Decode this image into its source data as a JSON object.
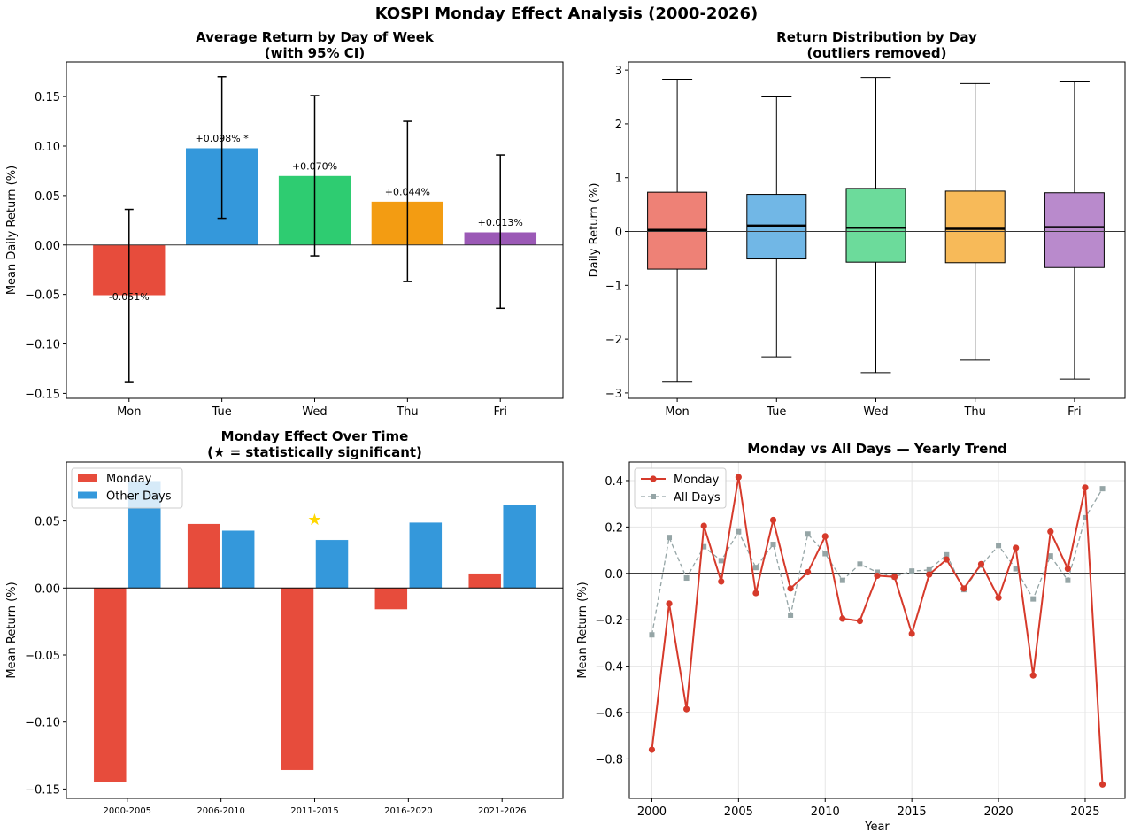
{
  "suptitle": "KOSPI Monday Effect Analysis (2000-2026)",
  "chart_data": [
    {
      "type": "bar",
      "title": "Average Return by Day of Week",
      "subtitle": "(with 95% CI)",
      "xlabel": "",
      "ylabel": "Mean Daily Return (%)",
      "categories": [
        "Mon",
        "Tue",
        "Wed",
        "Thu",
        "Fri"
      ],
      "values": [
        -0.051,
        0.098,
        0.07,
        0.044,
        0.013
      ],
      "ci_low": [
        -0.139,
        0.027,
        -0.011,
        -0.037,
        -0.064
      ],
      "ci_high": [
        0.036,
        0.17,
        0.151,
        0.125,
        0.091
      ],
      "data_labels": [
        "-0.051%",
        "+0.098% *",
        "+0.070%",
        "+0.044%",
        "+0.013%"
      ],
      "colors": [
        "#e74c3c",
        "#3498db",
        "#2ecc71",
        "#f39c12",
        "#9b59b6"
      ],
      "ylim": [
        -0.155,
        0.185
      ],
      "yticks": [
        -0.15,
        -0.1,
        -0.05,
        0.0,
        0.05,
        0.1,
        0.15
      ],
      "ytick_labels": [
        "−0.15",
        "−0.10",
        "−0.05",
        "0.00",
        "0.05",
        "0.10",
        "0.15"
      ],
      "grid": false,
      "zero_line": true
    },
    {
      "type": "box",
      "title": "Return Distribution by Day",
      "subtitle": "(outliers removed)",
      "xlabel": "",
      "ylabel": "Daily Return (%)",
      "categories": [
        "Mon",
        "Tue",
        "Wed",
        "Thu",
        "Fri"
      ],
      "whisker_low": [
        -2.8,
        -2.33,
        -2.62,
        -2.39,
        -2.74
      ],
      "q1": [
        -0.7,
        -0.51,
        -0.57,
        -0.58,
        -0.67
      ],
      "median": [
        0.03,
        0.11,
        0.07,
        0.05,
        0.08
      ],
      "q3": [
        0.73,
        0.69,
        0.8,
        0.75,
        0.72
      ],
      "whisker_high": [
        2.83,
        2.5,
        2.86,
        2.75,
        2.78
      ],
      "colors": [
        "#e74c3c",
        "#3498db",
        "#2ecc71",
        "#f39c12",
        "#9b59b6"
      ],
      "ylim": [
        -3.1,
        3.15
      ],
      "yticks": [
        -3,
        -2,
        -1,
        0,
        1,
        2,
        3
      ],
      "ytick_labels": [
        "−3",
        "−2",
        "−1",
        "0",
        "1",
        "2",
        "3"
      ],
      "grid": false,
      "zero_line": true
    },
    {
      "type": "bar",
      "title": "Monday Effect Over Time",
      "subtitle": "(★ = statistically significant)",
      "xlabel": "",
      "ylabel": "Mean Return (%)",
      "categories": [
        "2000-2005",
        "2006-2010",
        "2011-2015",
        "2016-2020",
        "2021-2026"
      ],
      "series": [
        {
          "name": "Monday",
          "color": "#e74c3c",
          "values": [
            -0.145,
            0.048,
            -0.136,
            -0.016,
            0.011
          ]
        },
        {
          "name": "Other Days",
          "color": "#3498db",
          "values": [
            0.08,
            0.043,
            0.036,
            0.049,
            0.062
          ]
        }
      ],
      "significant": [
        false,
        false,
        true,
        false,
        false
      ],
      "significance_marker": "★",
      "significance_color": "#ffd700",
      "significance_y": 0.051,
      "ylim": [
        -0.157,
        0.094
      ],
      "yticks": [
        -0.15,
        -0.1,
        -0.05,
        0.0,
        0.05
      ],
      "ytick_labels": [
        "−0.15",
        "−0.10",
        "−0.05",
        "0.00",
        "0.05"
      ],
      "legend": "top-left",
      "grid": false,
      "zero_line": true
    },
    {
      "type": "line",
      "title": "Monday vs All Days — Yearly Trend",
      "xlabel": "Year",
      "ylabel": "Mean Return (%)",
      "x": [
        2000,
        2001,
        2002,
        2003,
        2004,
        2005,
        2006,
        2007,
        2008,
        2009,
        2010,
        2011,
        2012,
        2013,
        2014,
        2015,
        2016,
        2017,
        2018,
        2019,
        2020,
        2021,
        2022,
        2023,
        2024,
        2025,
        2026
      ],
      "series": [
        {
          "name": "Monday",
          "color": "#d63a2b",
          "style": "solid",
          "marker": "circle",
          "values": [
            -0.76,
            -0.13,
            -0.585,
            0.205,
            -0.035,
            0.415,
            -0.085,
            0.23,
            -0.065,
            0.005,
            0.16,
            -0.195,
            -0.205,
            -0.01,
            -0.015,
            -0.26,
            -0.005,
            0.06,
            -0.065,
            0.04,
            -0.105,
            0.11,
            -0.44,
            0.18,
            0.02,
            0.37,
            -0.91
          ]
        },
        {
          "name": "All Days",
          "color": "#95a5a6",
          "style": "dashed",
          "marker": "square",
          "values": [
            -0.265,
            0.155,
            -0.02,
            0.115,
            0.055,
            0.18,
            0.025,
            0.125,
            -0.18,
            0.17,
            0.085,
            -0.03,
            0.04,
            0.005,
            -0.015,
            0.01,
            0.015,
            0.08,
            -0.07,
            0.035,
            0.12,
            0.02,
            -0.11,
            0.075,
            -0.03,
            0.24,
            0.365
          ]
        }
      ],
      "xlim": [
        1998.7,
        2027.3
      ],
      "ylim": [
        -0.97,
        0.48
      ],
      "xticks": [
        2000,
        2005,
        2010,
        2015,
        2020,
        2025
      ],
      "xtick_labels": [
        "2000",
        "2005",
        "2010",
        "2015",
        "2020",
        "2025"
      ],
      "yticks": [
        -0.8,
        -0.6,
        -0.4,
        -0.2,
        0.0,
        0.2,
        0.4
      ],
      "ytick_labels": [
        "−0.8",
        "−0.6",
        "−0.4",
        "−0.2",
        "0.0",
        "0.2",
        "0.4"
      ],
      "legend": "top-left",
      "grid": true,
      "zero_line": true
    }
  ]
}
